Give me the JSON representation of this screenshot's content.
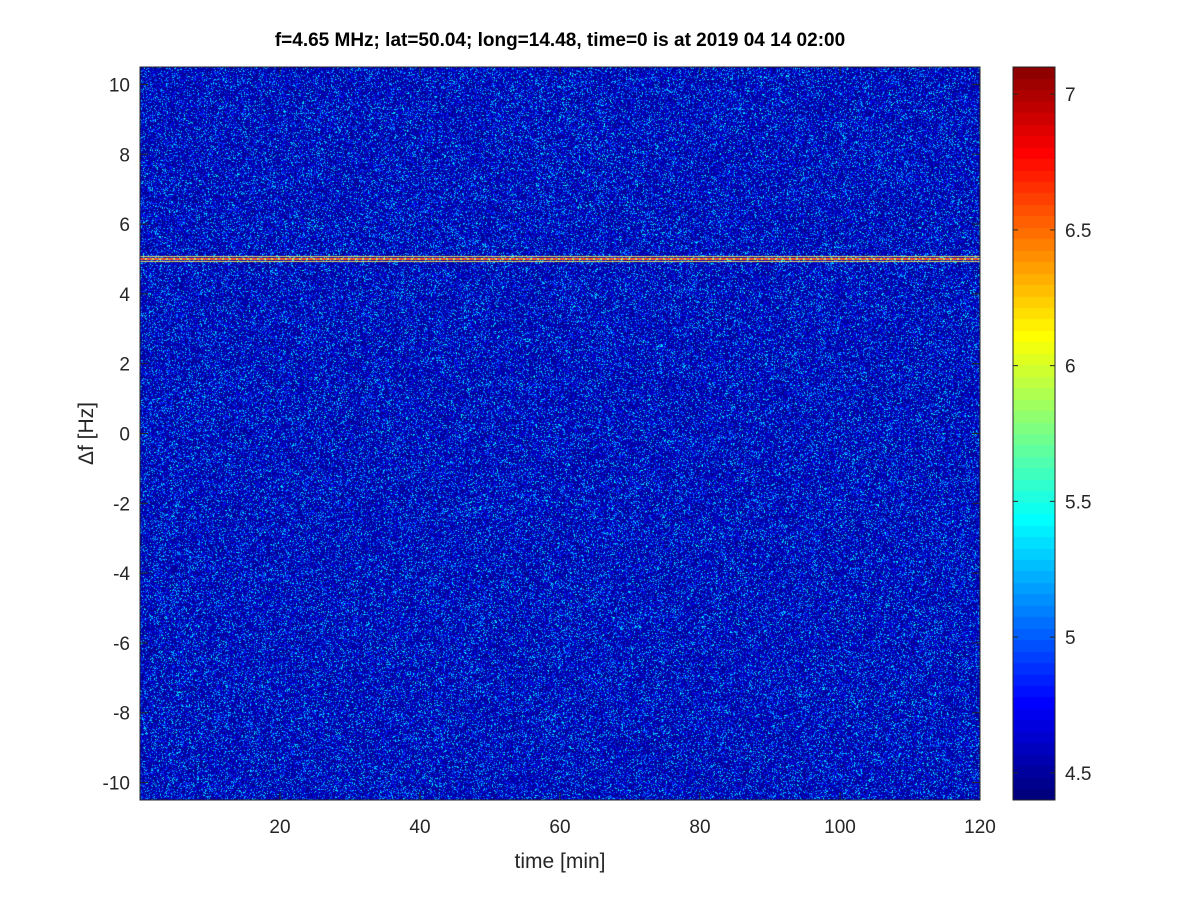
{
  "chart_data": {
    "type": "heatmap",
    "title": "f=4.65 MHz;  lat=50.04; long=14.48, time=0 is at 2019 04 14 02:00",
    "xlabel": "time [min]",
    "ylabel": "Δf [Hz]",
    "xlim": [
      0,
      120
    ],
    "ylim": [
      -10.5,
      10.5
    ],
    "xticks": [
      20,
      40,
      60,
      80,
      100,
      120
    ],
    "yticks": [
      -10,
      -8,
      -6,
      -4,
      -2,
      0,
      2,
      4,
      6,
      8,
      10
    ],
    "colormap": "jet",
    "clim": [
      4.4,
      7.1
    ],
    "colorbar_ticks": [
      4.5,
      5,
      5.5,
      6,
      6.5,
      7
    ],
    "background_level": 4.45,
    "noise_peak_level": 5.3,
    "features": [
      {
        "type": "horizontal_line",
        "y": 5,
        "x_range": [
          0,
          120
        ],
        "level": 6.9,
        "pulsed": true
      }
    ],
    "grid": false
  }
}
